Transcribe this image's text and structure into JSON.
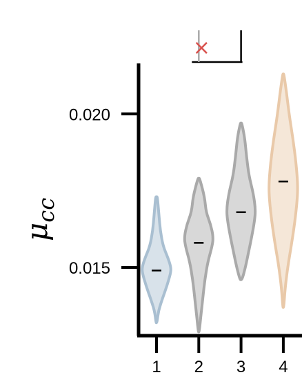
{
  "chart_data": {
    "type": "violin",
    "ylabel_main": "μ",
    "ylabel_sub": "cc",
    "xlabel": "",
    "title": "",
    "ylim": [
      0.0128,
      0.0216
    ],
    "yticks": [
      {
        "value": 0.015,
        "label": "0.015"
      },
      {
        "value": 0.02,
        "label": "0.020"
      }
    ],
    "categories": [
      "1",
      "2",
      "3",
      "4"
    ],
    "series": [
      {
        "category": "1",
        "median": 0.0149,
        "min": 0.0132,
        "max": 0.0173,
        "color": "#a9bfd1",
        "profile": [
          [
            0.0132,
            0.03
          ],
          [
            0.0136,
            0.14
          ],
          [
            0.014,
            0.42
          ],
          [
            0.0144,
            0.72
          ],
          [
            0.0148,
            0.97
          ],
          [
            0.015,
            1.0
          ],
          [
            0.0153,
            0.8
          ],
          [
            0.0157,
            0.45
          ],
          [
            0.0162,
            0.26
          ],
          [
            0.0167,
            0.17
          ],
          [
            0.0173,
            0.06
          ]
        ]
      },
      {
        "category": "2",
        "median": 0.0158,
        "min": 0.0129,
        "max": 0.0179,
        "color": "#a9a9a9",
        "profile": [
          [
            0.0129,
            0.03
          ],
          [
            0.0134,
            0.14
          ],
          [
            0.014,
            0.28
          ],
          [
            0.0146,
            0.42
          ],
          [
            0.0152,
            0.63
          ],
          [
            0.0157,
            0.93
          ],
          [
            0.016,
            1.0
          ],
          [
            0.0164,
            0.82
          ],
          [
            0.0168,
            0.5
          ],
          [
            0.0173,
            0.4
          ],
          [
            0.0179,
            0.06
          ]
        ]
      },
      {
        "category": "3",
        "median": 0.0168,
        "min": 0.0146,
        "max": 0.0197,
        "color": "#a9a9a9",
        "profile": [
          [
            0.0146,
            0.07
          ],
          [
            0.015,
            0.3
          ],
          [
            0.0155,
            0.52
          ],
          [
            0.016,
            0.74
          ],
          [
            0.0165,
            0.93
          ],
          [
            0.0169,
            1.0
          ],
          [
            0.0174,
            0.85
          ],
          [
            0.018,
            0.54
          ],
          [
            0.0186,
            0.38
          ],
          [
            0.0192,
            0.26
          ],
          [
            0.0197,
            0.05
          ]
        ]
      },
      {
        "category": "4",
        "median": 0.0178,
        "min": 0.0137,
        "max": 0.0213,
        "color": "#e9c9a9",
        "profile": [
          [
            0.0137,
            0.03
          ],
          [
            0.0143,
            0.12
          ],
          [
            0.015,
            0.3
          ],
          [
            0.0157,
            0.55
          ],
          [
            0.0165,
            0.8
          ],
          [
            0.0172,
            0.96
          ],
          [
            0.0177,
            1.0
          ],
          [
            0.0184,
            0.88
          ],
          [
            0.0192,
            0.66
          ],
          [
            0.02,
            0.4
          ],
          [
            0.0207,
            0.22
          ],
          [
            0.0213,
            0.04
          ]
        ]
      }
    ],
    "significance": {
      "bracket_from": "2",
      "bracket_to": "3",
      "marker_on": "2",
      "marker": "×",
      "marker_color": "#d9534f"
    }
  }
}
